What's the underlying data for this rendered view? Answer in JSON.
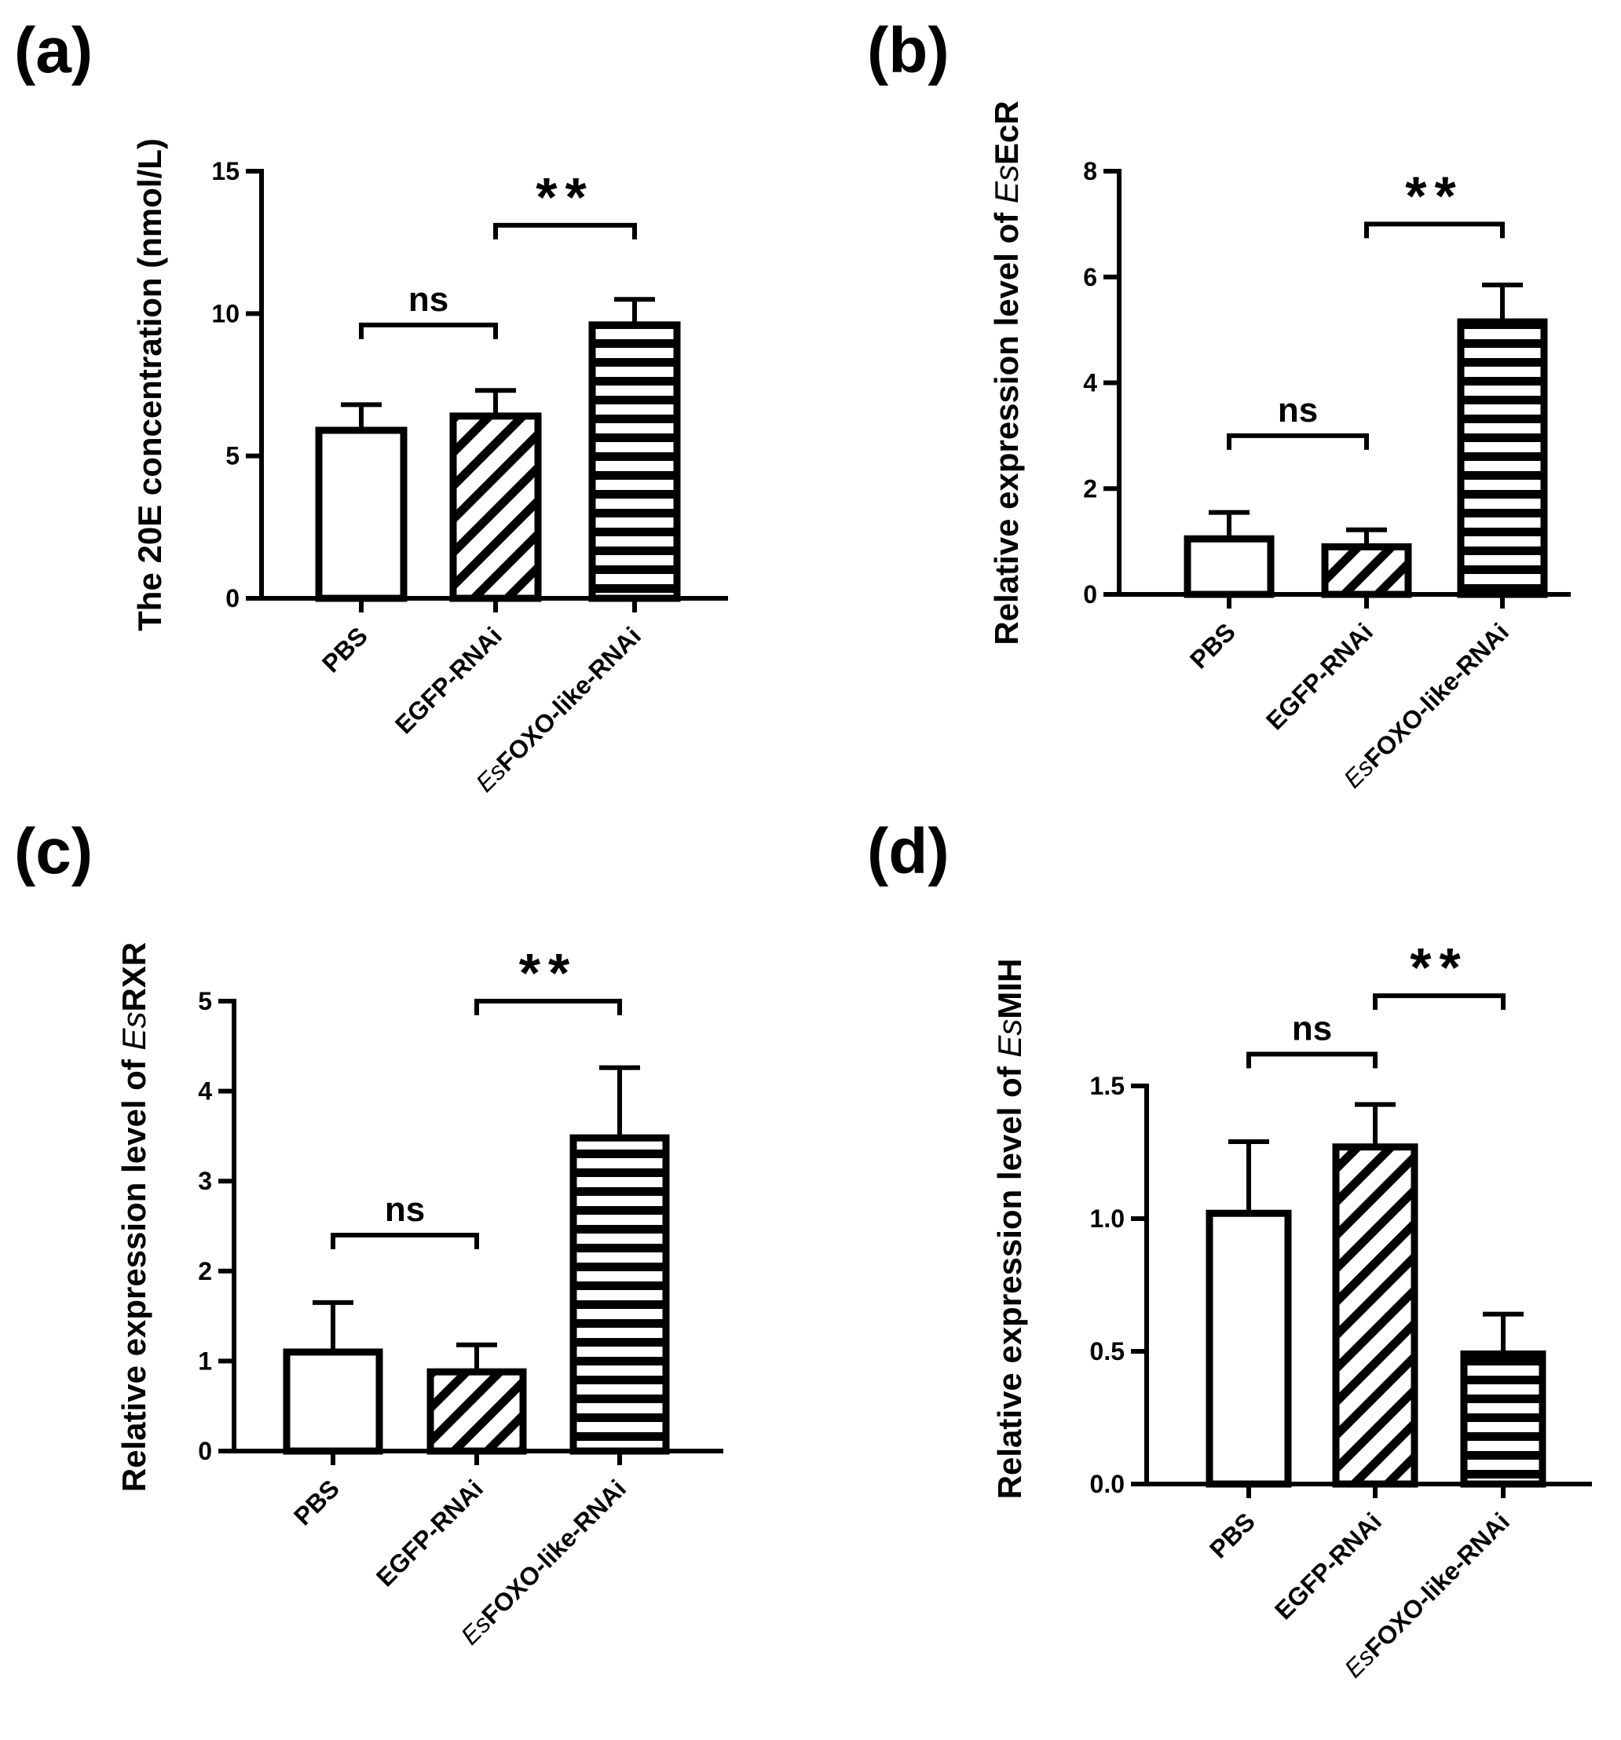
{
  "chart_data": [
    {
      "panel": "(a)",
      "type": "bar",
      "categories": [
        {
          "prefix": "",
          "text": "PBS"
        },
        {
          "prefix": "",
          "text": "EGFP-RNAi"
        },
        {
          "prefix": "Es",
          "text": "FOXO-like-RNAi"
        }
      ],
      "values": [
        5.9,
        6.4,
        9.6
      ],
      "errors": [
        0.9,
        0.9,
        0.9
      ],
      "patterns": [
        "none",
        "diagonal",
        "horizontal"
      ],
      "ylabel": {
        "prefix": "The 20E concentration (nmol/L)",
        "italic": "",
        "suffix": ""
      },
      "ylim": [
        0,
        15
      ],
      "yticks": [
        0,
        5,
        10,
        15
      ],
      "ytick_labels": [
        "0",
        "5",
        "10",
        "15"
      ],
      "significance": [
        {
          "from": 0,
          "to": 1,
          "label": "ns",
          "level": 9.6
        },
        {
          "from": 1,
          "to": 2,
          "label": "**",
          "level": 13.1
        }
      ]
    },
    {
      "panel": "(b)",
      "type": "bar",
      "categories": [
        {
          "prefix": "",
          "text": "PBS"
        },
        {
          "prefix": "",
          "text": "EGFP-RNAi"
        },
        {
          "prefix": "Es",
          "text": "FOXO-like-RNAi"
        }
      ],
      "values": [
        1.05,
        0.9,
        5.15
      ],
      "errors": [
        0.5,
        0.32,
        0.7
      ],
      "patterns": [
        "none",
        "diagonal",
        "horizontal"
      ],
      "ylabel": {
        "prefix": "Relative expression level of ",
        "italic": "Es",
        "suffix": "EcR"
      },
      "ylim": [
        0,
        8
      ],
      "yticks": [
        0,
        2,
        4,
        6,
        8
      ],
      "ytick_labels": [
        "0",
        "2",
        "4",
        "6",
        "8"
      ],
      "significance": [
        {
          "from": 0,
          "to": 1,
          "label": "ns",
          "level": 3.0
        },
        {
          "from": 1,
          "to": 2,
          "label": "**",
          "level": 7.0
        }
      ]
    },
    {
      "panel": "(c)",
      "type": "bar",
      "categories": [
        {
          "prefix": "",
          "text": "PBS"
        },
        {
          "prefix": "",
          "text": "EGFP-RNAi"
        },
        {
          "prefix": "Es",
          "text": "FOXO-like-RNAi"
        }
      ],
      "values": [
        1.1,
        0.88,
        3.48
      ],
      "errors": [
        0.55,
        0.3,
        0.78
      ],
      "patterns": [
        "none",
        "diagonal",
        "horizontal"
      ],
      "ylabel": {
        "prefix": "Relative expression level of ",
        "italic": "Es",
        "suffix": "RXR"
      },
      "ylim": [
        0,
        5
      ],
      "yticks": [
        0,
        1,
        2,
        3,
        4,
        5
      ],
      "ytick_labels": [
        "0",
        "1",
        "2",
        "3",
        "4",
        "5"
      ],
      "significance": [
        {
          "from": 0,
          "to": 1,
          "label": "ns",
          "level": 2.4
        },
        {
          "from": 1,
          "to": 2,
          "label": "**",
          "level": 5.0
        }
      ]
    },
    {
      "panel": "(d)",
      "type": "bar",
      "categories": [
        {
          "prefix": "",
          "text": "PBS"
        },
        {
          "prefix": "",
          "text": "EGFP-RNAi"
        },
        {
          "prefix": "Es",
          "text": "FOXO-like-RNAi"
        }
      ],
      "values": [
        1.02,
        1.27,
        0.49
      ],
      "errors": [
        0.27,
        0.16,
        0.15
      ],
      "patterns": [
        "none",
        "diagonal",
        "horizontal"
      ],
      "ylabel": {
        "prefix": "Relative expression level of ",
        "italic": "Es",
        "suffix": "MIH"
      },
      "ylim": [
        0,
        1.5
      ],
      "yticks": [
        0,
        0.5,
        1.0,
        1.5
      ],
      "ytick_labels": [
        "0.0",
        "0.5",
        "1.0",
        "1.5"
      ],
      "significance": [
        {
          "from": 0,
          "to": 1,
          "label": "ns",
          "level": 1.62
        },
        {
          "from": 1,
          "to": 2,
          "label": "**",
          "level": 1.84
        }
      ]
    }
  ]
}
